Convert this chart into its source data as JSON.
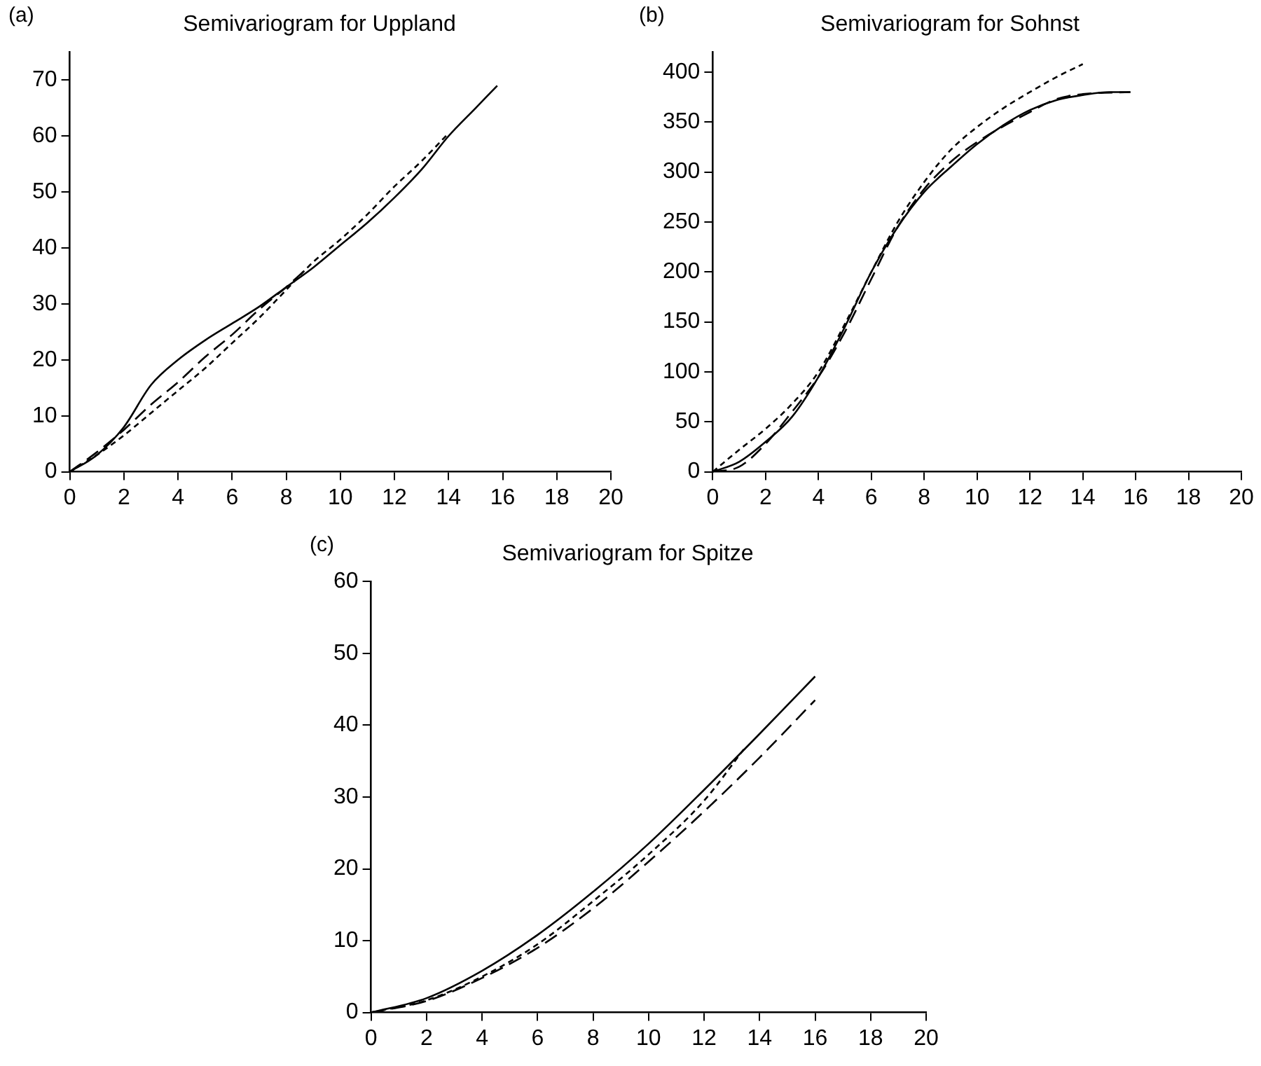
{
  "chart_data": [
    {
      "type": "line",
      "title": "Semivariogram for Uppland",
      "annotations": [
        "(a)"
      ],
      "xlim": [
        0,
        20
      ],
      "xticks": [
        0,
        2,
        4,
        6,
        8,
        10,
        12,
        14,
        16,
        18,
        20
      ],
      "ylim": [
        0,
        75
      ],
      "yticks": [
        0,
        10,
        20,
        30,
        40,
        50,
        60,
        70
      ],
      "grid": false,
      "legend": false,
      "marker": "none",
      "series": [
        {
          "color": "#000000",
          "line_style": "solid",
          "x": [
            0,
            1,
            2,
            3,
            4,
            5,
            6,
            7,
            8,
            9,
            10,
            11,
            12,
            13,
            14,
            15,
            15.8
          ],
          "values": [
            0,
            3,
            8,
            15.5,
            20,
            23.5,
            26.5,
            29.5,
            33,
            36.5,
            40.5,
            44.5,
            49,
            54,
            60,
            65,
            69
          ]
        },
        {
          "color": "#000000",
          "line_style": "dashed",
          "x": [
            0,
            1,
            2,
            3,
            4,
            5,
            6,
            7,
            8,
            8.8
          ],
          "values": [
            0,
            3.5,
            7.5,
            12,
            16,
            20.5,
            24.5,
            29,
            33,
            36.5
          ]
        },
        {
          "color": "#000000",
          "line_style": "dotted",
          "x": [
            0,
            1,
            2,
            3,
            4,
            5,
            6,
            7,
            8,
            9,
            10,
            11,
            12,
            13,
            14
          ],
          "values": [
            0,
            3,
            6.5,
            10.5,
            14.5,
            18.5,
            23,
            27.5,
            32.5,
            37.5,
            41.5,
            46,
            51,
            55.5,
            60.5
          ]
        }
      ]
    },
    {
      "type": "line",
      "title": "Semivariogram for Sohnst",
      "annotations": [
        "(b)"
      ],
      "xlim": [
        0,
        20
      ],
      "xticks": [
        0,
        2,
        4,
        6,
        8,
        10,
        12,
        14,
        16,
        18,
        20
      ],
      "ylim": [
        0,
        420
      ],
      "yticks": [
        0,
        50,
        100,
        150,
        200,
        250,
        300,
        350,
        400
      ],
      "grid": false,
      "legend": false,
      "marker": "none",
      "series": [
        {
          "color": "#000000",
          "line_style": "solid",
          "x": [
            0,
            1,
            2,
            3,
            4,
            5,
            6,
            7,
            8,
            9,
            10,
            11,
            12,
            13,
            14,
            15,
            15.8
          ],
          "values": [
            0,
            10,
            30,
            55,
            95,
            145,
            200,
            245,
            280,
            305,
            328,
            347,
            362,
            372,
            377,
            380,
            380
          ]
        },
        {
          "color": "#000000",
          "line_style": "dashed",
          "x": [
            0,
            1,
            2,
            3,
            4,
            5,
            6,
            7,
            8,
            9,
            10,
            12,
            13,
            14,
            15.8
          ],
          "values": [
            0,
            5,
            28,
            60,
            95,
            140,
            193,
            245,
            283,
            310,
            330,
            360,
            373,
            378,
            380
          ]
        },
        {
          "color": "#000000",
          "line_style": "dotted",
          "x": [
            0,
            1,
            2,
            3,
            4,
            5,
            6,
            7,
            8,
            9,
            10,
            11,
            12,
            13,
            14
          ],
          "values": [
            0,
            22,
            43,
            68,
            100,
            148,
            200,
            250,
            290,
            322,
            345,
            364,
            380,
            395,
            408
          ]
        }
      ]
    },
    {
      "type": "line",
      "title": "Semivariogram for Spitze",
      "annotations": [
        "(c)"
      ],
      "xlim": [
        0,
        20
      ],
      "xticks": [
        0,
        2,
        4,
        6,
        8,
        10,
        12,
        14,
        16,
        18,
        20
      ],
      "ylim": [
        0,
        60
      ],
      "yticks": [
        0,
        10,
        20,
        30,
        40,
        50,
        60
      ],
      "grid": false,
      "legend": false,
      "marker": "none",
      "series": [
        {
          "color": "#000000",
          "line_style": "solid",
          "x": [
            0,
            2,
            4,
            6,
            8,
            10,
            12,
            14,
            16
          ],
          "values": [
            0,
            2,
            5.8,
            10.8,
            16.8,
            23.5,
            31,
            38.8,
            46.8
          ]
        },
        {
          "color": "#000000",
          "line_style": "dashed",
          "x": [
            0,
            2,
            4,
            6,
            8,
            10,
            12,
            14,
            16
          ],
          "values": [
            0,
            1.6,
            4.8,
            9,
            14.5,
            21,
            28,
            35.5,
            43.5
          ]
        },
        {
          "color": "#000000",
          "line_style": "dotted",
          "x": [
            0,
            2,
            4,
            6,
            8,
            10,
            12,
            13.5
          ],
          "values": [
            0,
            1.7,
            5,
            9.5,
            15.5,
            22,
            29.5,
            37
          ]
        }
      ]
    }
  ]
}
